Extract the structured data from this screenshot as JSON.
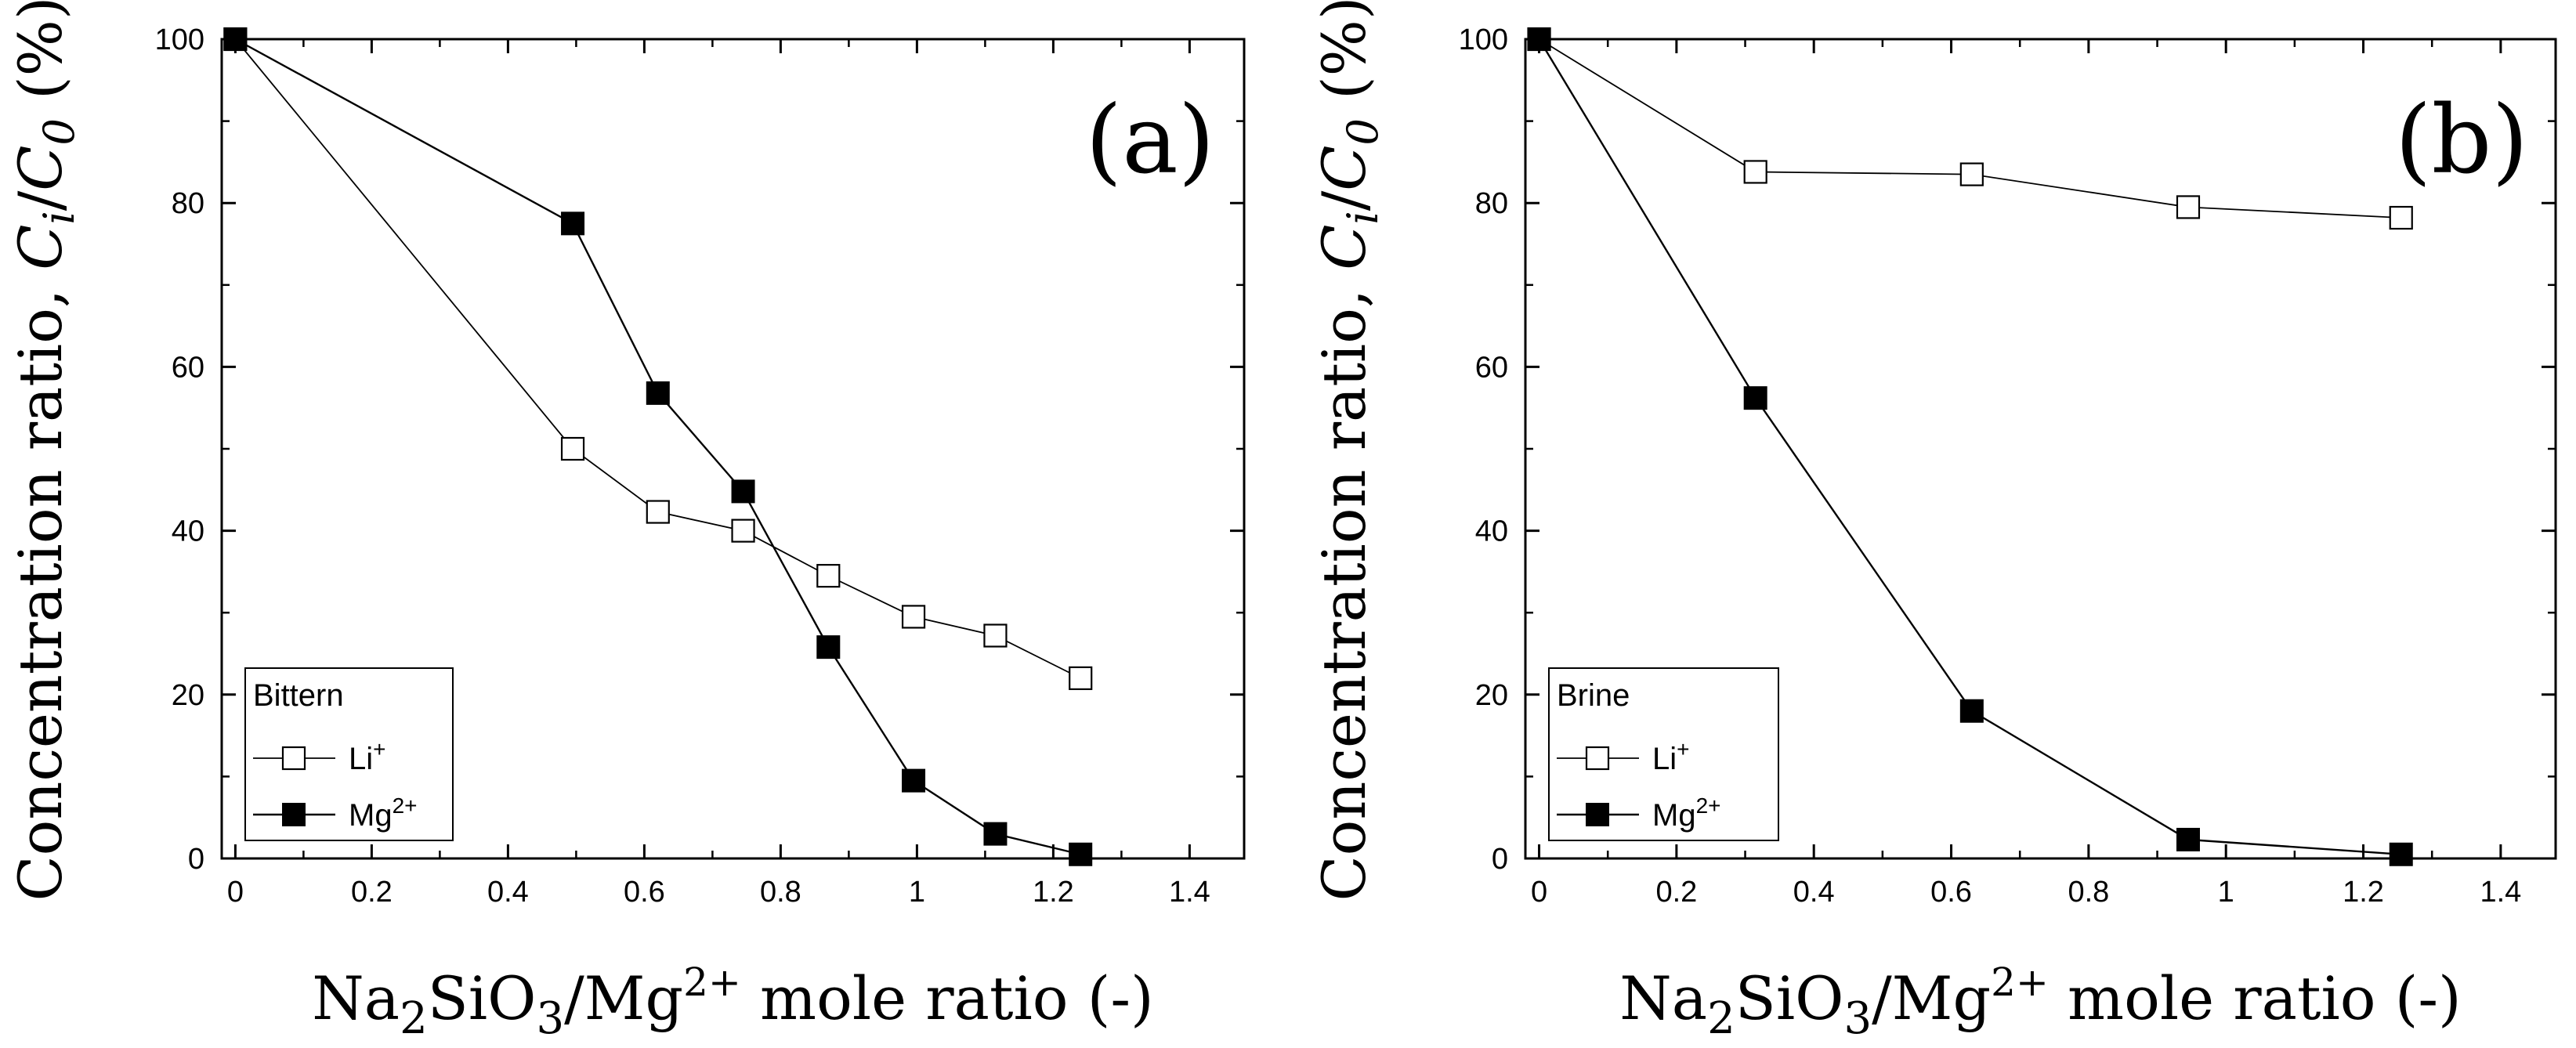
{
  "chart_data": [
    {
      "type": "line",
      "panel_label": "(a)",
      "xlabel": {
        "main": "Na",
        "sub1": "2",
        "mid": "SiO",
        "sub2": "3",
        "tail": "/Mg",
        "sup": "2+",
        "end": " mole ratio  (-)"
      },
      "ylabel": {
        "prefix": "Concentration ratio, ",
        "c1": "C",
        "sub1": "i",
        "slash": "/",
        "c2": "C",
        "sub2": "0",
        "suffix": " (%)"
      },
      "xlim": [
        -0.02,
        1.48
      ],
      "ylim": [
        0,
        100
      ],
      "x_ticks": [
        "0",
        "0.2",
        "0.4",
        "0.6",
        "0.8",
        "1",
        "1.2",
        "1.4"
      ],
      "y_ticks": [
        "0",
        "20",
        "40",
        "60",
        "80",
        "100"
      ],
      "legend": {
        "title": "Bittern",
        "placement": "bottom-left"
      },
      "series": [
        {
          "name": "Li",
          "sup": "+",
          "marker": "open-square",
          "x": [
            0,
            0.495,
            0.62,
            0.745,
            0.87,
            0.995,
            1.115,
            1.24
          ],
          "values": [
            100,
            50,
            42.3,
            40,
            34.5,
            29.5,
            27.2,
            22
          ]
        },
        {
          "name": "Mg",
          "sup": "2+",
          "marker": "filled-square",
          "x": [
            0,
            0.495,
            0.62,
            0.745,
            0.87,
            0.995,
            1.115,
            1.24
          ],
          "values": [
            100,
            77.5,
            56.8,
            44.8,
            25.8,
            9.5,
            3.0,
            0.5
          ]
        }
      ]
    },
    {
      "type": "line",
      "panel_label": "(b)",
      "xlabel": {
        "main": "Na",
        "sub1": "2",
        "mid": "SiO",
        "sub2": "3",
        "tail": "/Mg",
        "sup": "2+",
        "end": " mole ratio  (-)"
      },
      "ylabel": {
        "prefix": "Concentration ratio, ",
        "c1": "C",
        "sub1": "i",
        "slash": "/",
        "c2": "C",
        "sub2": "0",
        "suffix": " (%)"
      },
      "xlim": [
        -0.02,
        1.48
      ],
      "ylim": [
        0,
        100
      ],
      "x_ticks": [
        "0",
        "0.2",
        "0.4",
        "0.6",
        "0.8",
        "1",
        "1.2",
        "1.4"
      ],
      "y_ticks": [
        "0",
        "20",
        "40",
        "60",
        "80",
        "100"
      ],
      "legend": {
        "title": "Brine",
        "placement": "bottom-left"
      },
      "series": [
        {
          "name": "Li",
          "sup": "+",
          "marker": "open-square",
          "x": [
            0,
            0.315,
            0.63,
            0.945,
            1.255
          ],
          "values": [
            100,
            83.8,
            83.5,
            79.5,
            78.2
          ]
        },
        {
          "name": "Mg",
          "sup": "2+",
          "marker": "filled-square",
          "x": [
            0,
            0.315,
            0.63,
            0.945,
            1.255
          ],
          "values": [
            100,
            56.2,
            18,
            2.3,
            0.5
          ]
        }
      ]
    }
  ]
}
